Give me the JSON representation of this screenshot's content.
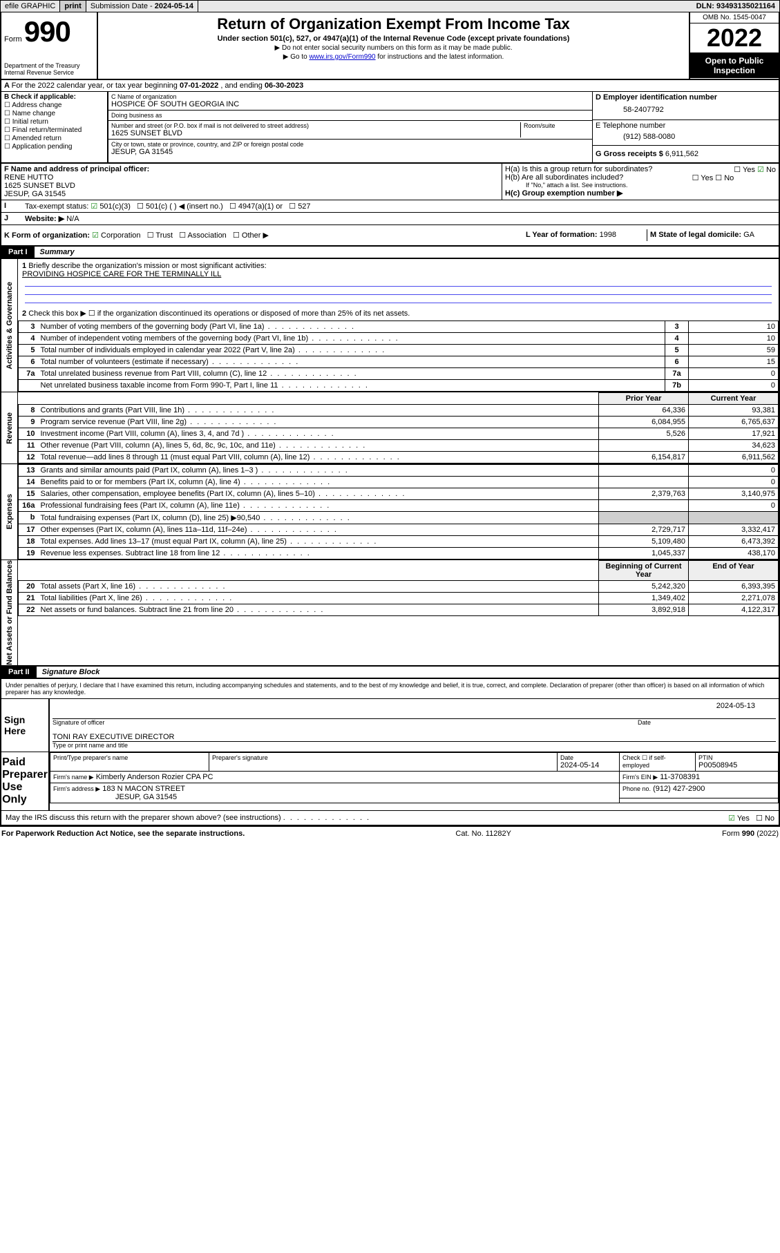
{
  "topbar": {
    "efile": "efile GRAPHIC",
    "print": "print",
    "submission_label": "Submission Date - ",
    "submission_date": "2024-05-14",
    "dln_label": "DLN: ",
    "dln": "93493135021164"
  },
  "formhead": {
    "form_word": "Form",
    "form_no": "990",
    "title": "Return of Organization Exempt From Income Tax",
    "subtitle": "Under section 501(c), 527, or 4947(a)(1) of the Internal Revenue Code (except private foundations)",
    "note1": "▶ Do not enter social security numbers on this form as it may be made public.",
    "note2_pre": "▶ Go to ",
    "note2_link": "www.irs.gov/Form990",
    "note2_post": " for instructions and the latest information.",
    "dept": "Department of the Treasury",
    "irs": "Internal Revenue Service",
    "omb": "OMB No. 1545-0047",
    "year": "2022",
    "open": "Open to Public Inspection"
  },
  "periodA": {
    "text_pre": "For the 2022 calendar year, or tax year beginning ",
    "begin": "07-01-2022",
    "mid": " , and ending ",
    "end": "06-30-2023"
  },
  "boxB": {
    "label": "B Check if applicable:",
    "opts": [
      "Address change",
      "Name change",
      "Initial return",
      "Final return/terminated",
      "Amended return",
      "Application pending"
    ]
  },
  "boxC": {
    "name_lbl": "C Name of organization",
    "name": "HOSPICE OF SOUTH GEORGIA INC",
    "dba_lbl": "Doing business as",
    "dba": "",
    "street_lbl": "Number and street (or P.O. box if mail is not delivered to street address)",
    "room_lbl": "Room/suite",
    "street": "1625 SUNSET BLVD",
    "city_lbl": "City or town, state or province, country, and ZIP or foreign postal code",
    "city": "JESUP, GA  31545"
  },
  "boxD": {
    "lbl": "D Employer identification number",
    "val": "58-2407792"
  },
  "boxE": {
    "lbl": "E Telephone number",
    "val": "(912) 588-0080"
  },
  "boxG": {
    "lbl": "G Gross receipts $",
    "val": "6,911,562"
  },
  "boxF": {
    "lbl": "F  Name and address of principal officer:",
    "name": "RENE HUTTO",
    "street": "1625 SUNSET BLVD",
    "city": "JESUP, GA  31545"
  },
  "boxH": {
    "a_lbl": "H(a)  Is this a group return for subordinates?",
    "b_lbl": "H(b)  Are all subordinates included?",
    "note": "If \"No,\" attach a list. See instructions.",
    "c_lbl": "H(c)  Group exemption number ▶",
    "yes": "Yes",
    "no": "No"
  },
  "rowI": {
    "lbl": "Tax-exempt status:",
    "opts": [
      "501(c)(3)",
      "501(c) (  ) ◀ (insert no.)",
      "4947(a)(1) or",
      "527"
    ]
  },
  "rowJ": {
    "lbl": "Website: ▶",
    "val": "N/A"
  },
  "rowK": {
    "lbl": "K Form of organization:",
    "opts": [
      "Corporation",
      "Trust",
      "Association",
      "Other ▶"
    ]
  },
  "rowL": {
    "lbl": "L Year of formation:",
    "val": "1998"
  },
  "rowM": {
    "lbl": "M State of legal domicile:",
    "val": "GA"
  },
  "part1": {
    "label": "Part I",
    "title": "Summary",
    "l1_lbl": "Briefly describe the organization's mission or most significant activities:",
    "l1_val": "PROVIDING HOSPICE CARE FOR THE TERMINALLY ILL",
    "l2_lbl": "Check this box ▶ ☐  if the organization discontinued its operations or disposed of more than 25% of its net assets.",
    "rows_gov": [
      {
        "n": "3",
        "lbl": "Number of voting members of the governing body (Part VI, line 1a)",
        "code": "3",
        "val": "10"
      },
      {
        "n": "4",
        "lbl": "Number of independent voting members of the governing body (Part VI, line 1b)",
        "code": "4",
        "val": "10"
      },
      {
        "n": "5",
        "lbl": "Total number of individuals employed in calendar year 2022 (Part V, line 2a)",
        "code": "5",
        "val": "59"
      },
      {
        "n": "6",
        "lbl": "Total number of volunteers (estimate if necessary)",
        "code": "6",
        "val": "15"
      },
      {
        "n": "7a",
        "lbl": "Total unrelated business revenue from Part VIII, column (C), line 12",
        "code": "7a",
        "val": "0"
      },
      {
        "n": "",
        "lbl": "Net unrelated business taxable income from Form 990-T, Part I, line 11",
        "code": "7b",
        "val": "0"
      }
    ],
    "col_hdr_prior": "Prior Year",
    "col_hdr_curr": "Current Year",
    "rows_rev": [
      {
        "n": "8",
        "lbl": "Contributions and grants (Part VIII, line 1h)",
        "p": "64,336",
        "c": "93,381"
      },
      {
        "n": "9",
        "lbl": "Program service revenue (Part VIII, line 2g)",
        "p": "6,084,955",
        "c": "6,765,637"
      },
      {
        "n": "10",
        "lbl": "Investment income (Part VIII, column (A), lines 3, 4, and 7d )",
        "p": "5,526",
        "c": "17,921"
      },
      {
        "n": "11",
        "lbl": "Other revenue (Part VIII, column (A), lines 5, 6d, 8c, 9c, 10c, and 11e)",
        "p": "",
        "c": "34,623"
      },
      {
        "n": "12",
        "lbl": "Total revenue—add lines 8 through 11 (must equal Part VIII, column (A), line 12)",
        "p": "6,154,817",
        "c": "6,911,562"
      }
    ],
    "rows_exp": [
      {
        "n": "13",
        "lbl": "Grants and similar amounts paid (Part IX, column (A), lines 1–3 )",
        "p": "",
        "c": "0"
      },
      {
        "n": "14",
        "lbl": "Benefits paid to or for members (Part IX, column (A), line 4)",
        "p": "",
        "c": "0"
      },
      {
        "n": "15",
        "lbl": "Salaries, other compensation, employee benefits (Part IX, column (A), lines 5–10)",
        "p": "2,379,763",
        "c": "3,140,975"
      },
      {
        "n": "16a",
        "lbl": "Professional fundraising fees (Part IX, column (A), line 11e)",
        "p": "",
        "c": "0"
      },
      {
        "n": "b",
        "lbl": "Total fundraising expenses (Part IX, column (D), line 25) ▶90,540",
        "p": "shade",
        "c": "shade"
      },
      {
        "n": "17",
        "lbl": "Other expenses (Part IX, column (A), lines 11a–11d, 11f–24e)",
        "p": "2,729,717",
        "c": "3,332,417"
      },
      {
        "n": "18",
        "lbl": "Total expenses. Add lines 13–17 (must equal Part IX, column (A), line 25)",
        "p": "5,109,480",
        "c": "6,473,392"
      },
      {
        "n": "19",
        "lbl": "Revenue less expenses. Subtract line 18 from line 12",
        "p": "1,045,337",
        "c": "438,170"
      }
    ],
    "col_hdr_begin": "Beginning of Current Year",
    "col_hdr_end": "End of Year",
    "rows_net": [
      {
        "n": "20",
        "lbl": "Total assets (Part X, line 16)",
        "p": "5,242,320",
        "c": "6,393,395"
      },
      {
        "n": "21",
        "lbl": "Total liabilities (Part X, line 26)",
        "p": "1,349,402",
        "c": "2,271,078"
      },
      {
        "n": "22",
        "lbl": "Net assets or fund balances. Subtract line 21 from line 20",
        "p": "3,892,918",
        "c": "4,122,317"
      }
    ],
    "tab_gov": "Activities & Governance",
    "tab_rev": "Revenue",
    "tab_exp": "Expenses",
    "tab_net": "Net Assets or Fund Balances"
  },
  "part2": {
    "label": "Part II",
    "title": "Signature Block",
    "decl": "Under penalties of perjury, I declare that I have examined this return, including accompanying schedules and statements, and to the best of my knowledge and belief, it is true, correct, and complete. Declaration of preparer (other than officer) is based on all information of which preparer has any knowledge.",
    "sign_here": "Sign Here",
    "sig_officer": "Signature of officer",
    "date_lbl": "Date",
    "sig_date": "2024-05-13",
    "officer_name": "TONI RAY  EXECUTIVE DIRECTOR",
    "officer_sub": "Type or print name and title",
    "paid": "Paid Preparer Use Only",
    "prep_name_lbl": "Print/Type preparer's name",
    "prep_sig_lbl": "Preparer's signature",
    "prep_date_lbl": "Date",
    "prep_date": "2024-05-14",
    "self_lbl": "Check ☐ if self-employed",
    "ptin_lbl": "PTIN",
    "ptin": "P00508945",
    "firm_name_lbl": "Firm's name    ▶",
    "firm_name": "Kimberly Anderson Rozier CPA PC",
    "firm_ein_lbl": "Firm's EIN ▶",
    "firm_ein": "11-3708391",
    "firm_addr_lbl": "Firm's address ▶",
    "firm_addr1": "183 N MACON STREET",
    "firm_addr2": "JESUP, GA  31545",
    "firm_phone_lbl": "Phone no.",
    "firm_phone": "(912) 427-2900",
    "discuss": "May the IRS discuss this return with the preparer shown above? (see instructions)",
    "yes": "Yes",
    "no": "No"
  },
  "footer": {
    "left": "For Paperwork Reduction Act Notice, see the separate instructions.",
    "mid": "Cat. No. 11282Y",
    "right_pre": "Form ",
    "right_bold": "990",
    "right_post": " (2022)"
  }
}
